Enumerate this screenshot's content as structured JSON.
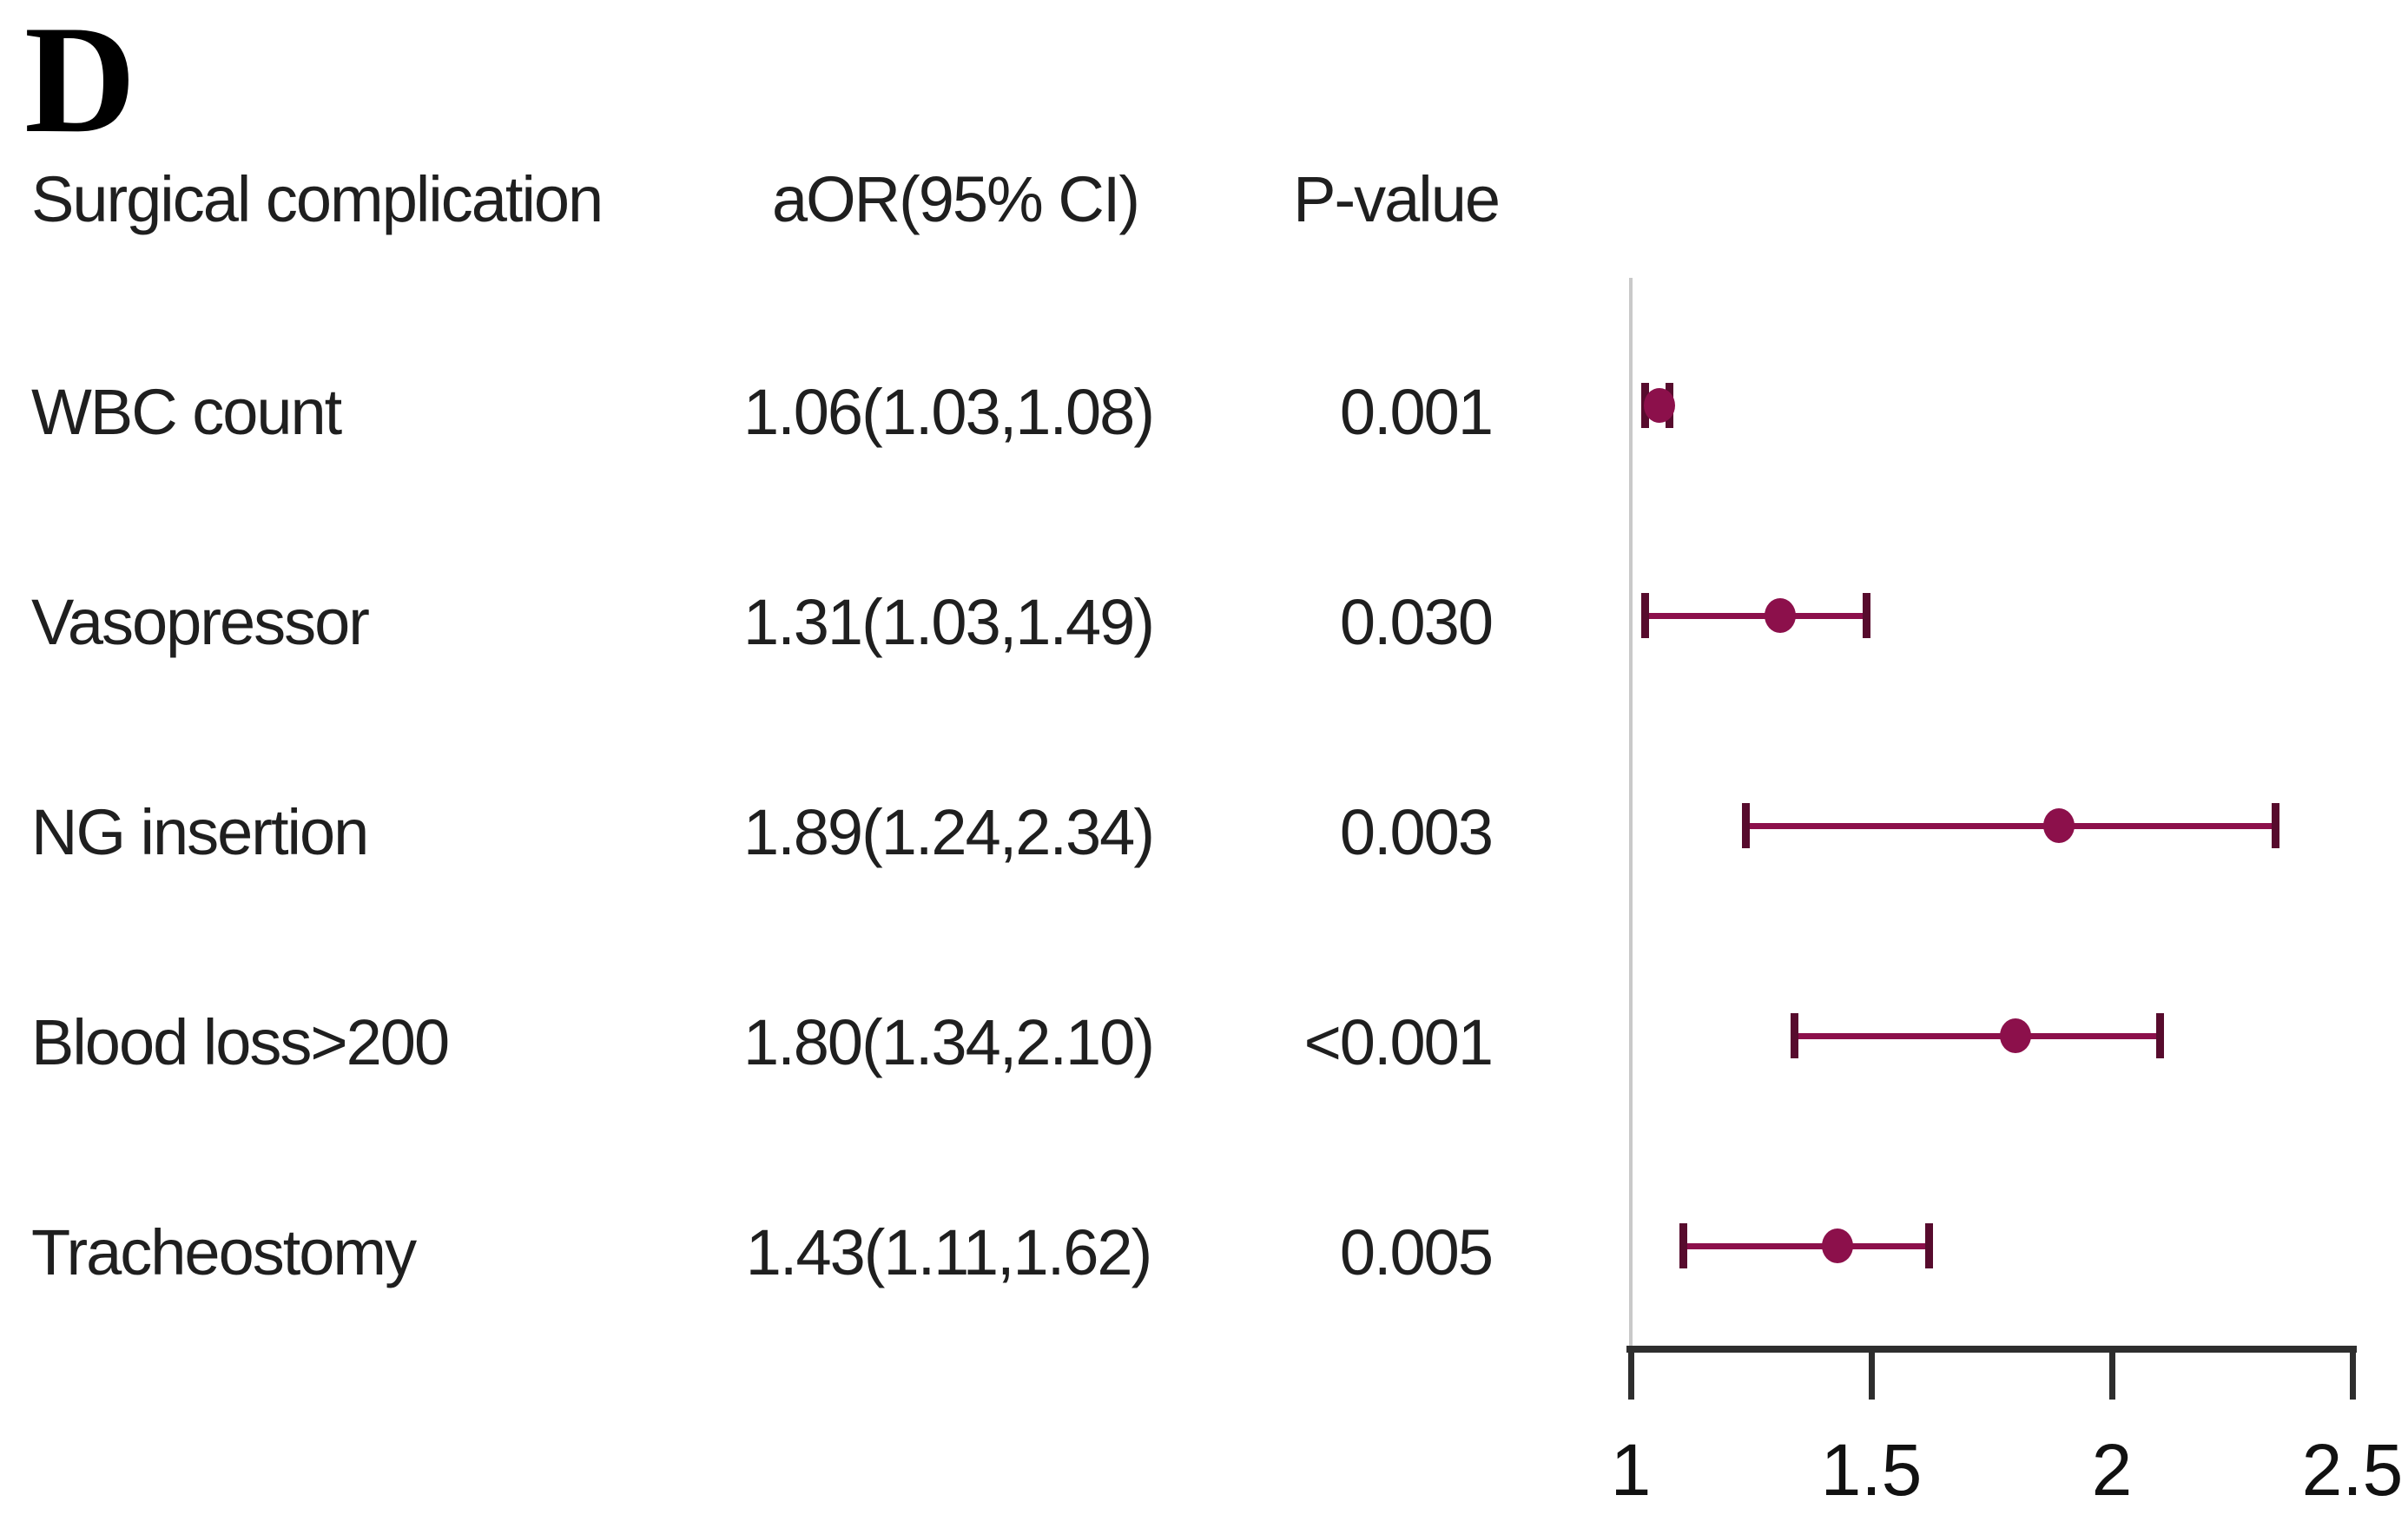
{
  "panel_label": "D",
  "columns": {
    "complication": "Surgical complication",
    "aor": "aOR(95% CI)",
    "pvalue": "P-value"
  },
  "chart_data": {
    "type": "scatter",
    "subtype": "forest-plot",
    "title": "Surgical complication forest plot (panel D)",
    "rows": [
      {
        "label": "WBC count",
        "aor_ci": "1.06(1.03,1.08)",
        "p_value": "0.001",
        "estimate": 1.06,
        "ci_low": 1.03,
        "ci_high": 1.08
      },
      {
        "label": "Vasopressor",
        "aor_ci": "1.31(1.03,1.49)",
        "p_value": "0.030",
        "estimate": 1.31,
        "ci_low": 1.03,
        "ci_high": 1.49
      },
      {
        "label": "NG insertion",
        "aor_ci": "1.89(1.24,2.34)",
        "p_value": "0.003",
        "estimate": 1.89,
        "ci_low": 1.24,
        "ci_high": 2.34
      },
      {
        "label": "Blood loss>200",
        "aor_ci": "1.80(1.34,2.10)",
        "p_value": "<0.001",
        "estimate": 1.8,
        "ci_low": 1.34,
        "ci_high": 2.1
      },
      {
        "label": "Tracheostomy",
        "aor_ci": "1.43(1.11,1.62)",
        "p_value": "0.005",
        "estimate": 1.43,
        "ci_low": 1.11,
        "ci_high": 1.62
      }
    ],
    "x_axis": {
      "min": 1,
      "max": 2.5,
      "tick_values": [
        1,
        1.5,
        2,
        2.5
      ],
      "tick_labels": [
        "1",
        "1.5",
        "2",
        "2.5"
      ],
      "reference_line": 1,
      "grid": false
    },
    "colors": {
      "marker": "#8C104B",
      "whisker_cap": "#570B2D",
      "reference_line": "#C9C9C9",
      "axis": "#2E2E2E"
    }
  }
}
